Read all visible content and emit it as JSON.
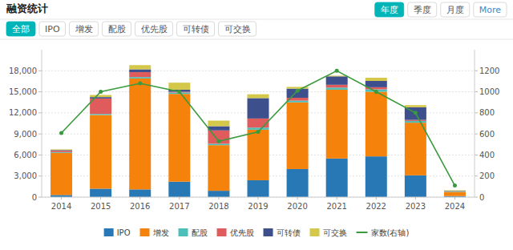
{
  "chart_data": {
    "type": "bar",
    "stacked": true,
    "title": "融资统计",
    "annotations": [
      [
        "全部",
        "IPO",
        "增发",
        "配股",
        "优先股",
        "可转债",
        "可交换"
      ],
      [
        "年度",
        "季度",
        "月度",
        "More"
      ]
    ],
    "categories": [
      "2014",
      "2015",
      "2016",
      "2017",
      "2018",
      "2019",
      "2020",
      "2021",
      "2022",
      "2023",
      "2024"
    ],
    "series": [
      {
        "name": "IPO",
        "color": "#2878b5",
        "values": [
          300,
          1200,
          1100,
          2200,
          900,
          2400,
          4000,
          5500,
          5800,
          3100,
          150
        ]
      },
      {
        "name": "增发",
        "color": "#f5820a",
        "values": [
          6000,
          10500,
          15800,
          12500,
          6500,
          7200,
          9500,
          9800,
          9200,
          7500,
          600
        ]
      },
      {
        "name": "配股",
        "color": "#4dbfb8",
        "values": [
          100,
          150,
          200,
          200,
          200,
          300,
          250,
          300,
          350,
          250,
          50
        ]
      },
      {
        "name": "优先股",
        "color": "#e05c5c",
        "values": [
          200,
          2200,
          700,
          100,
          1900,
          1300,
          400,
          400,
          300,
          150,
          30
        ]
      },
      {
        "name": "可转债",
        "color": "#3d4f8c",
        "values": [
          100,
          200,
          400,
          300,
          600,
          2900,
          1300,
          1200,
          900,
          1800,
          60
        ]
      },
      {
        "name": "可交换",
        "color": "#d4c84a",
        "values": [
          100,
          300,
          600,
          1000,
          800,
          550,
          250,
          100,
          450,
          300,
          80
        ]
      },
      {
        "name": "家数(右轴)",
        "type": "line",
        "axis": "y2",
        "color": "#3a9a3e",
        "marker": "circle",
        "values": [
          609,
          1000,
          1080,
          1000,
          530,
          620,
          1010,
          1200,
          1000,
          800,
          110
        ]
      }
    ],
    "ylim": [
      0,
      21000
    ],
    "yticks": [
      0,
      {
        "value": 3000,
        "label": "3,000"
      },
      {
        "value": 6000,
        "label": "6,000"
      },
      {
        "value": 9000,
        "label": "9,000"
      },
      {
        "value": 12000,
        "label": "12,000"
      },
      {
        "value": 15000,
        "label": "15,000"
      },
      {
        "value": 18000,
        "label": "18,000"
      }
    ],
    "y2lim": [
      0,
      1400
    ],
    "y2ticks": [
      0,
      200,
      400,
      600,
      800,
      1000,
      1200
    ],
    "grid": true,
    "legend": "bottom"
  }
}
